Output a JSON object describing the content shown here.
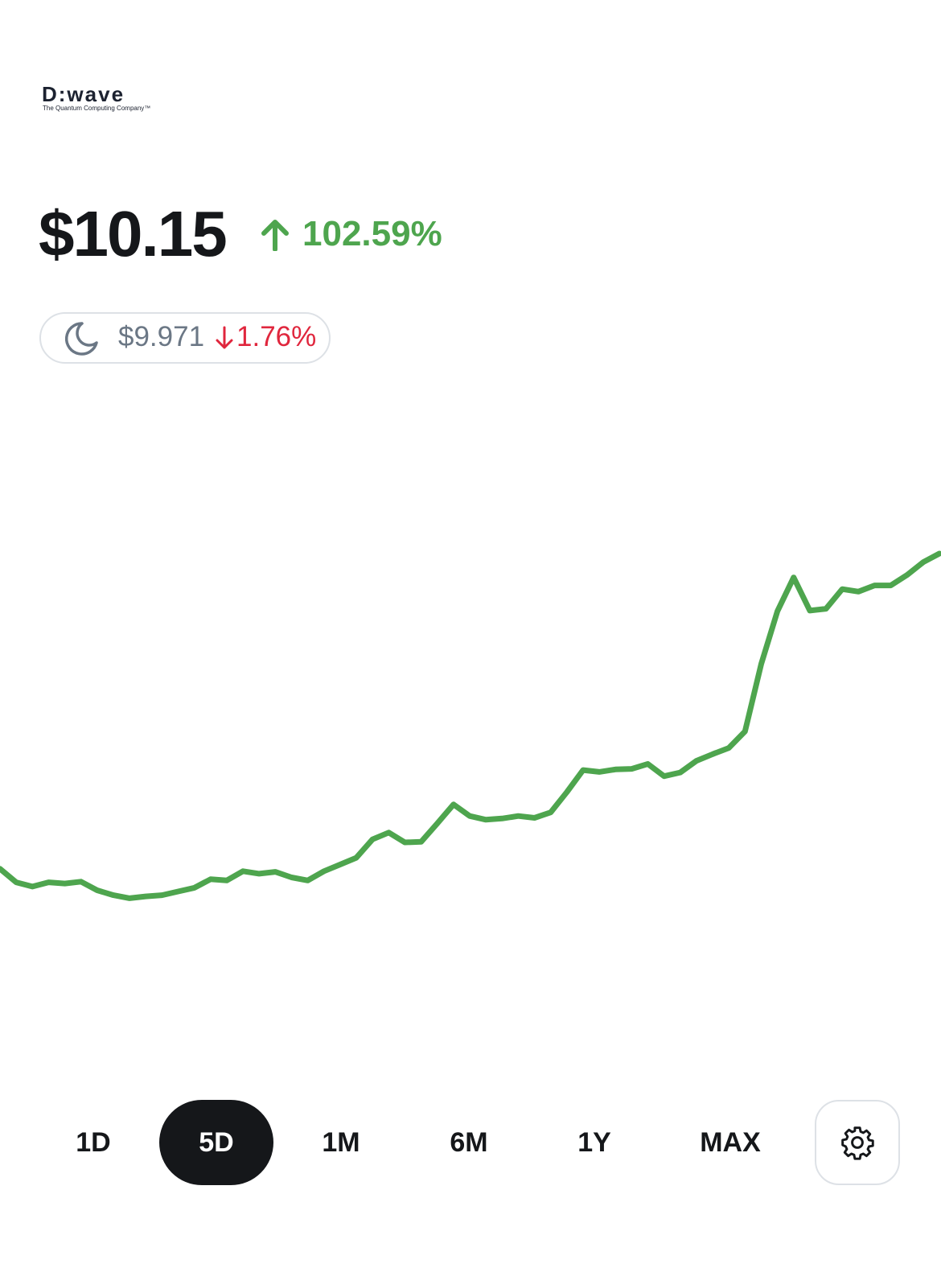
{
  "header": {
    "logo": "D:wave",
    "logo_tagline": "The Quantum Computing Company™"
  },
  "quote": {
    "price": "$10.15",
    "change": "102.59%",
    "after_hours_price": "$9.971",
    "after_hours_change": "1.76%"
  },
  "chart_data": {
    "type": "line",
    "color": "#4ea54e",
    "ylim": [
      3,
      12
    ],
    "values": [
      5.01,
      4.79,
      4.72,
      4.79,
      4.77,
      4.8,
      4.66,
      4.58,
      4.53,
      4.56,
      4.58,
      4.64,
      4.7,
      4.84,
      4.82,
      4.97,
      4.93,
      4.96,
      4.87,
      4.82,
      4.97,
      5.08,
      5.19,
      5.49,
      5.6,
      5.44,
      5.45,
      5.75,
      6.06,
      5.87,
      5.81,
      5.83,
      5.87,
      5.84,
      5.93,
      6.26,
      6.62,
      6.59,
      6.63,
      6.64,
      6.72,
      6.52,
      6.58,
      6.77,
      6.88,
      6.98,
      7.25,
      8.35,
      9.21,
      9.76,
      9.22,
      9.25,
      9.57,
      9.53,
      9.63,
      9.63,
      9.8,
      10.01,
      10.15
    ]
  },
  "ranges": [
    "1D",
    "5D",
    "1M",
    "6M",
    "1Y",
    "MAX"
  ],
  "selected_range": "5D"
}
